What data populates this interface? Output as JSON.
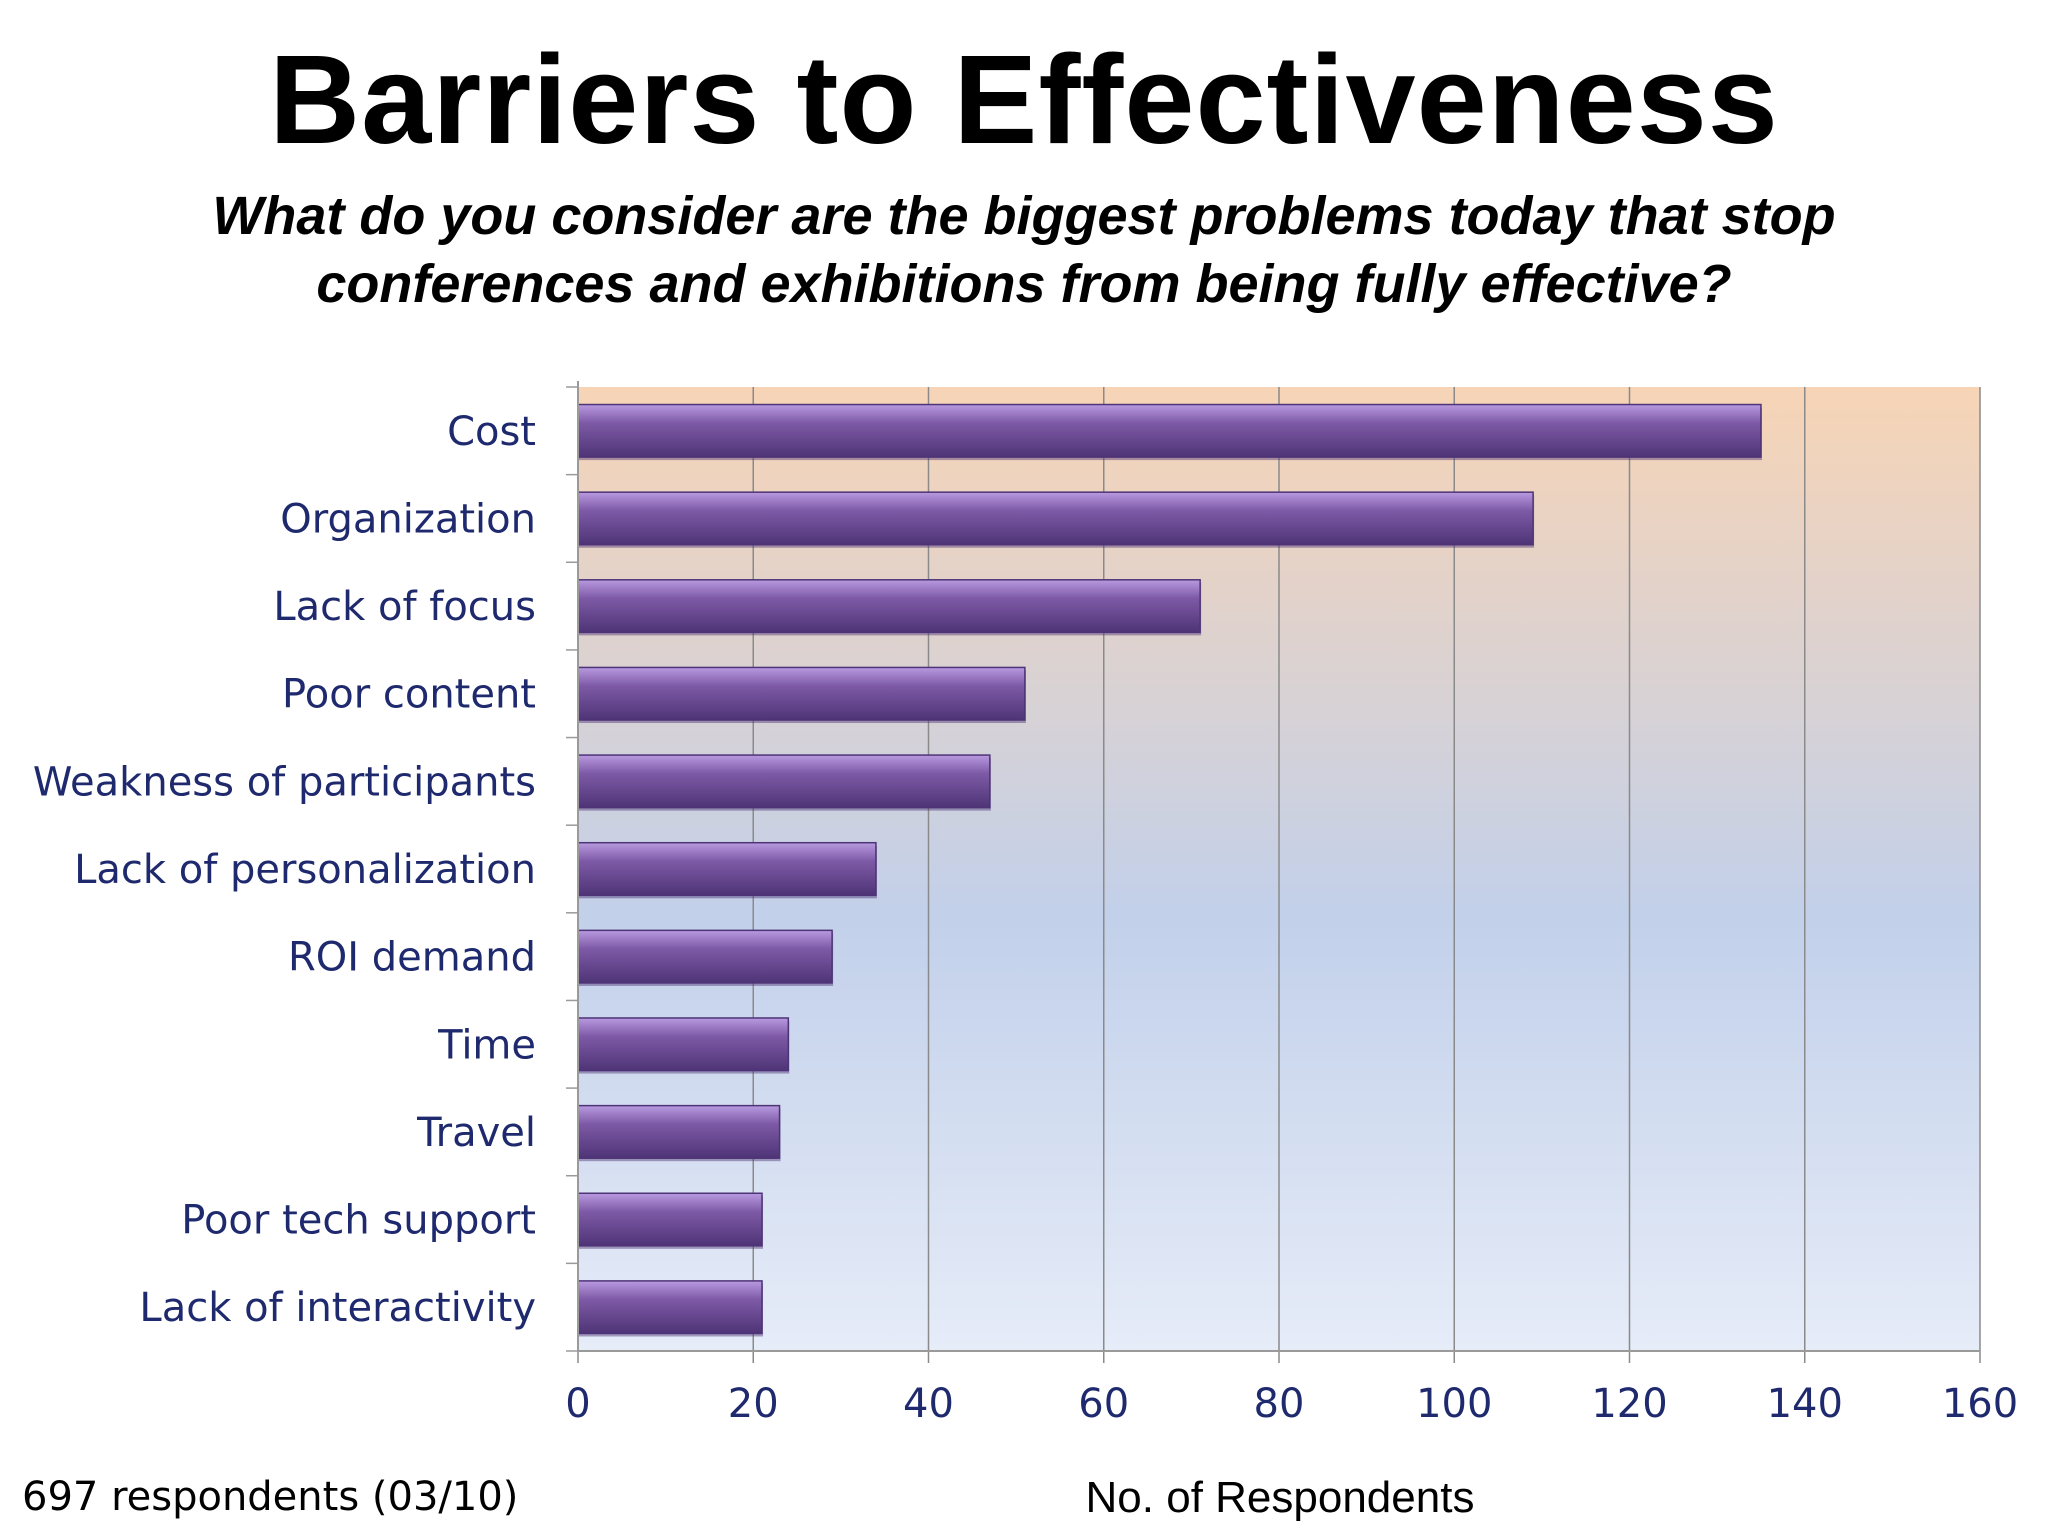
{
  "slide": {
    "title": "Barriers to Effectiveness",
    "question": "What do you consider are the biggest problems today that stop conferences and exhibitions from being fully effective?",
    "footnote": "697 respondents (03/10)"
  },
  "colors": {
    "bar_fill": "#7e5aa6",
    "bar_highlight": "#b89ae0",
    "bar_shadow": "#4e3476",
    "plot_bg_top": "#f7d4b6",
    "plot_bg_middle": "#c2d0ea",
    "plot_bg_bottom": "#e6ecf8",
    "label_color": "#1f2a6e",
    "gridline": "#8a8a8a"
  },
  "chart_data": {
    "type": "bar",
    "orientation": "horizontal",
    "categories": [
      "Cost",
      "Organization",
      "Lack of focus",
      "Poor content",
      "Weakness of participants",
      "Lack of personalization",
      "ROI demand",
      "Time",
      "Travel",
      "Poor tech support",
      "Lack of interactivity"
    ],
    "values": [
      135,
      109,
      71,
      51,
      47,
      34,
      29,
      24,
      23,
      21,
      21
    ],
    "xlabel": "No. of Respondents",
    "ylabel": "",
    "xlim": [
      0,
      160
    ],
    "xticks": [
      0,
      20,
      40,
      60,
      80,
      100,
      120,
      140,
      160
    ],
    "grid": "vertical",
    "legend": "none"
  }
}
